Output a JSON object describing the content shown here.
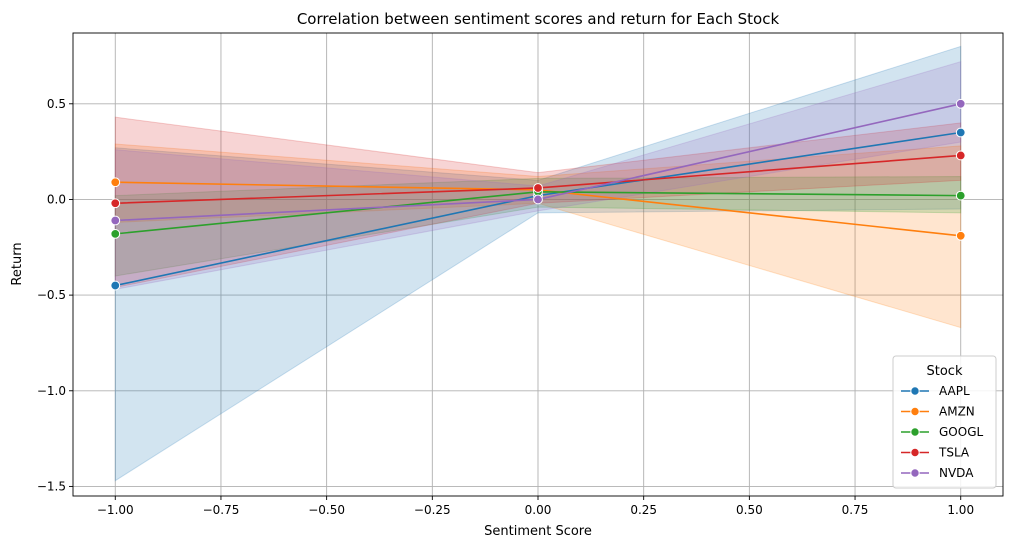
{
  "chart_data": {
    "type": "line",
    "title": "Correlation between sentiment scores and return for Each Stock",
    "xlabel": "Sentiment Score",
    "ylabel": "Return",
    "xlim": [
      -1.1,
      1.1
    ],
    "ylim": [
      -1.55,
      0.87
    ],
    "x_ticks": [
      -1.0,
      -0.75,
      -0.5,
      -0.25,
      0.0,
      0.25,
      0.5,
      0.75,
      1.0
    ],
    "x_tick_labels": [
      "−1.00",
      "−0.75",
      "−0.50",
      "−0.25",
      "0.00",
      "0.25",
      "0.50",
      "0.75",
      "1.00"
    ],
    "y_ticks": [
      -1.5,
      -1.0,
      -0.5,
      0.0,
      0.5
    ],
    "y_tick_labels": [
      "−1.5",
      "−1.0",
      "−0.5",
      "0.0",
      "0.5"
    ],
    "grid": true,
    "legend": {
      "title": "Stock",
      "position": "lower-right"
    },
    "x": [
      -1.0,
      0.0,
      1.0
    ],
    "series": [
      {
        "name": "AAPL",
        "color": "#1f77b4",
        "values": [
          -0.45,
          0.02,
          0.35
        ],
        "ci_low": [
          -1.47,
          -0.07,
          -0.05
        ],
        "ci_high": [
          0.27,
          0.1,
          0.8
        ]
      },
      {
        "name": "AMZN",
        "color": "#ff7f0e",
        "values": [
          0.09,
          0.05,
          -0.19
        ],
        "ci_low": [
          -0.12,
          -0.02,
          -0.67
        ],
        "ci_high": [
          0.29,
          0.12,
          0.28
        ]
      },
      {
        "name": "GOOGL",
        "color": "#2ca02c",
        "values": [
          -0.18,
          0.04,
          0.02
        ],
        "ci_low": [
          -0.4,
          -0.04,
          -0.07
        ],
        "ci_high": [
          0.02,
          0.11,
          0.12
        ]
      },
      {
        "name": "TSLA",
        "color": "#d62728",
        "values": [
          -0.02,
          0.06,
          0.23
        ],
        "ci_low": [
          -0.46,
          -0.02,
          0.1
        ],
        "ci_high": [
          0.43,
          0.14,
          0.4
        ]
      },
      {
        "name": "NVDA",
        "color": "#9467bd",
        "values": [
          -0.11,
          0.0,
          0.5
        ],
        "ci_low": [
          -0.47,
          -0.06,
          0.3
        ],
        "ci_high": [
          0.26,
          0.07,
          0.72
        ]
      }
    ]
  }
}
